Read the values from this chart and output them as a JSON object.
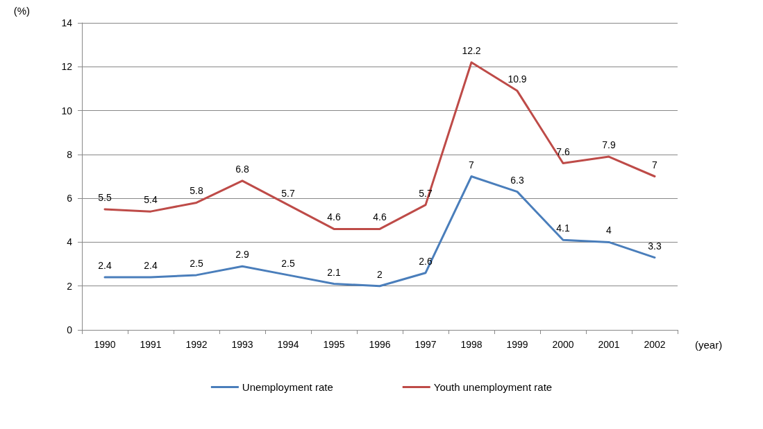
{
  "chart_data": {
    "type": "line",
    "xlabel": "(year)",
    "ylabel": "(%)",
    "categories": [
      "1990",
      "1991",
      "1992",
      "1993",
      "1994",
      "1995",
      "1996",
      "1997",
      "1998",
      "1999",
      "2000",
      "2001",
      "2002"
    ],
    "series": [
      {
        "name": "Unemployment rate",
        "color": "#4a7ebb",
        "values": [
          2.4,
          2.4,
          2.5,
          2.9,
          2.5,
          2.1,
          2,
          2.6,
          7,
          6.3,
          4.1,
          4,
          3.3
        ]
      },
      {
        "name": "Youth unemployment rate",
        "color": "#be4b48",
        "values": [
          5.5,
          5.4,
          5.8,
          6.8,
          5.7,
          4.6,
          4.6,
          5.7,
          12.2,
          10.9,
          7.6,
          7.9,
          7
        ]
      }
    ],
    "ylim": [
      0,
      14
    ],
    "yticks": [
      0,
      2,
      4,
      6,
      8,
      10,
      12,
      14
    ],
    "grid": "y",
    "legend": "bottom",
    "marker": "none",
    "line_style": "solid",
    "data_labels": true
  }
}
